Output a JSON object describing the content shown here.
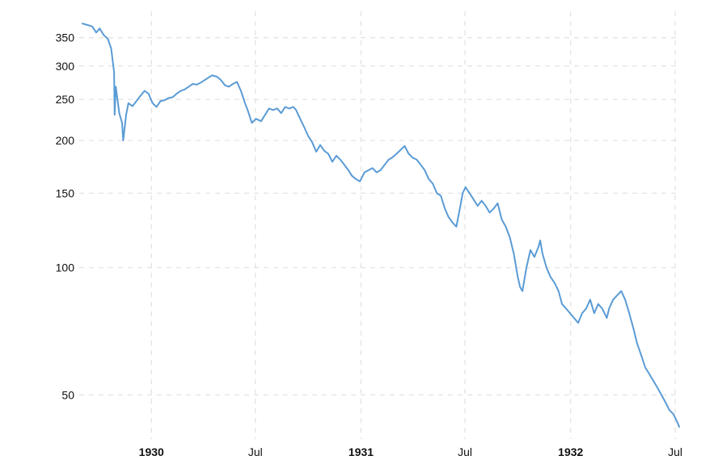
{
  "chart_data": {
    "type": "line",
    "title": "",
    "xlabel": "",
    "ylabel": "",
    "y_scale": "log",
    "ylim": [
      40,
      380
    ],
    "xlim": [
      "1929-09-03",
      "1932-07-08"
    ],
    "grid": true,
    "line_color": "#5a9bd5",
    "x_ticks": [
      {
        "label": "1930",
        "date": "1930-01-01",
        "bold": true
      },
      {
        "label": "Jul",
        "date": "1930-07-01",
        "bold": false
      },
      {
        "label": "1931",
        "date": "1931-01-01",
        "bold": true
      },
      {
        "label": "Jul",
        "date": "1931-07-01",
        "bold": false
      },
      {
        "label": "1932",
        "date": "1932-01-01",
        "bold": true
      },
      {
        "label": "Jul",
        "date": "1932-07-01",
        "bold": false
      }
    ],
    "y_ticks": [
      {
        "label": "50",
        "value": 50
      },
      {
        "label": "100",
        "value": 100
      },
      {
        "label": "150",
        "value": 150
      },
      {
        "label": "200",
        "value": 200
      },
      {
        "label": "250",
        "value": 250
      },
      {
        "label": "300",
        "value": 300
      },
      {
        "label": "350",
        "value": 350
      }
    ],
    "series": [
      {
        "x": [
          "1929-09-03",
          "1929-09-12",
          "1929-09-20",
          "1929-09-27",
          "1929-10-03",
          "1929-10-10",
          "1929-10-17",
          "1929-10-23",
          "1929-10-28",
          "1929-10-29",
          "1929-10-31",
          "1929-11-06",
          "1929-11-11",
          "1929-11-13",
          "1929-11-18",
          "1929-11-22",
          "1929-11-29",
          "1929-12-06",
          "1929-12-13",
          "1929-12-20",
          "1929-12-27",
          "1930-01-03",
          "1930-01-10",
          "1930-01-17",
          "1930-01-24",
          "1930-01-31",
          "1930-02-07",
          "1930-02-14",
          "1930-02-21",
          "1930-02-28",
          "1930-03-07",
          "1930-03-14",
          "1930-03-21",
          "1930-03-28",
          "1930-04-04",
          "1930-04-11",
          "1930-04-17",
          "1930-04-25",
          "1930-05-02",
          "1930-05-09",
          "1930-05-16",
          "1930-05-23",
          "1930-05-30",
          "1930-06-06",
          "1930-06-13",
          "1930-06-18",
          "1930-06-25",
          "1930-07-02",
          "1930-07-11",
          "1930-07-18",
          "1930-07-25",
          "1930-08-01",
          "1930-08-08",
          "1930-08-15",
          "1930-08-22",
          "1930-08-29",
          "1930-09-05",
          "1930-09-10",
          "1930-09-17",
          "1930-09-24",
          "1930-10-01",
          "1930-10-08",
          "1930-10-15",
          "1930-10-22",
          "1930-10-29",
          "1930-11-05",
          "1930-11-12",
          "1930-11-19",
          "1930-11-26",
          "1930-12-03",
          "1930-12-10",
          "1930-12-16",
          "1930-12-23",
          "1930-12-30",
          "1931-01-07",
          "1931-01-14",
          "1931-01-21",
          "1931-01-28",
          "1931-02-04",
          "1931-02-11",
          "1931-02-18",
          "1931-02-24",
          "1931-03-04",
          "1931-03-11",
          "1931-03-18",
          "1931-03-25",
          "1931-04-01",
          "1931-04-08",
          "1931-04-15",
          "1931-04-22",
          "1931-04-29",
          "1931-05-06",
          "1931-05-13",
          "1931-05-20",
          "1931-05-27",
          "1931-06-02",
          "1931-06-09",
          "1931-06-16",
          "1931-06-23",
          "1931-06-27",
          "1931-07-02",
          "1931-07-09",
          "1931-07-16",
          "1931-07-23",
          "1931-07-30",
          "1931-08-06",
          "1931-08-13",
          "1931-08-20",
          "1931-08-27",
          "1931-09-03",
          "1931-09-10",
          "1931-09-17",
          "1931-09-24",
          "1931-10-01",
          "1931-10-05",
          "1931-10-09",
          "1931-10-16",
          "1931-10-23",
          "1931-10-30",
          "1931-11-06",
          "1931-11-09",
          "1931-11-13",
          "1931-11-20",
          "1931-11-27",
          "1931-12-04",
          "1931-12-11",
          "1931-12-17",
          "1931-12-24",
          "1931-12-31",
          "1932-01-07",
          "1932-01-14",
          "1932-01-21",
          "1932-01-28",
          "1932-02-04",
          "1932-02-11",
          "1932-02-18",
          "1932-02-25",
          "1932-03-04",
          "1932-03-08",
          "1932-03-15",
          "1932-03-22",
          "1932-03-29",
          "1932-04-05",
          "1932-04-12",
          "1932-04-19",
          "1932-04-26",
          "1932-05-03",
          "1932-05-10",
          "1932-05-17",
          "1932-05-24",
          "1932-05-31",
          "1932-06-07",
          "1932-06-14",
          "1932-06-21",
          "1932-06-28",
          "1932-07-05",
          "1932-07-08"
        ],
        "values": [
          378,
          375,
          372,
          360,
          368,
          355,
          348,
          330,
          290,
          230,
          268,
          232,
          220,
          200,
          230,
          245,
          241,
          248,
          255,
          262,
          258,
          245,
          240,
          248,
          249,
          252,
          253,
          258,
          262,
          264,
          268,
          272,
          271,
          274,
          278,
          282,
          285,
          283,
          278,
          270,
          268,
          272,
          275,
          262,
          245,
          235,
          220,
          225,
          222,
          230,
          238,
          236,
          238,
          232,
          240,
          238,
          240,
          236,
          225,
          215,
          205,
          198,
          188,
          195,
          189,
          186,
          178,
          184,
          180,
          175,
          170,
          165,
          162,
          160,
          168,
          170,
          172,
          168,
          170,
          175,
          180,
          182,
          186,
          190,
          194,
          186,
          182,
          180,
          175,
          170,
          162,
          158,
          150,
          148,
          138,
          132,
          128,
          125,
          140,
          150,
          155,
          150,
          145,
          140,
          144,
          140,
          135,
          138,
          142,
          130,
          125,
          118,
          108,
          95,
          90,
          88,
          100,
          110,
          106,
          112,
          116,
          108,
          100,
          95,
          92,
          88,
          82,
          80,
          78,
          76,
          74,
          78,
          80,
          84,
          78,
          82,
          80,
          76,
          80,
          84,
          86,
          88,
          84,
          78,
          72,
          66,
          62,
          58,
          56,
          54,
          52,
          50,
          48,
          46,
          45,
          43,
          42
        ]
      }
    ]
  }
}
